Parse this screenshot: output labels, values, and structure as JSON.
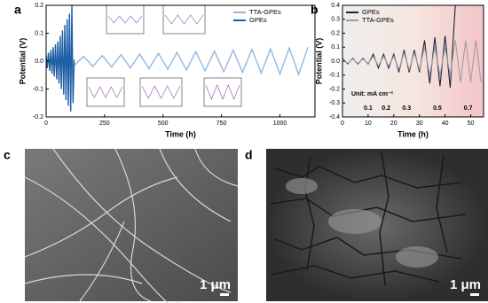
{
  "chart_data": [
    {
      "type": "line",
      "label": "a",
      "xlabel": "Time (h)",
      "ylabel": "Potential (V)",
      "xlim": [
        0,
        1150
      ],
      "xticks": [
        0,
        250,
        500,
        750,
        1000
      ],
      "ylim": [
        -0.2,
        0.2
      ],
      "yticks": [
        -0.2,
        -0.1,
        {
          "value": 0,
          "label": "0.0"
        },
        0.1,
        0.2
      ],
      "legend": "upper right",
      "series": [
        {
          "name": "TTA-GPEs",
          "color": "#8fb8e0",
          "x": [
            0,
            40,
            80,
            120,
            160,
            200,
            240,
            280,
            320,
            360,
            400,
            440,
            480,
            520,
            560,
            600,
            640,
            680,
            720,
            760,
            800,
            840,
            880,
            920,
            960,
            1000,
            1040,
            1080,
            1120
          ],
          "values": [
            0.012,
            -0.013,
            0.015,
            -0.016,
            0.017,
            -0.019,
            0.02,
            -0.021,
            0.023,
            -0.024,
            0.025,
            -0.027,
            0.028,
            -0.029,
            0.031,
            -0.032,
            0.034,
            -0.035,
            0.036,
            -0.038,
            0.039,
            -0.04,
            0.042,
            -0.043,
            0.044,
            -0.046,
            0.047,
            -0.048,
            0.05
          ]
        },
        {
          "name": "GPEs",
          "color": "#1f5fa6",
          "x": [
            0,
            5,
            10,
            15,
            20,
            25,
            30,
            35,
            40,
            45,
            50,
            55,
            60,
            65,
            70,
            75,
            80,
            85,
            90,
            95,
            100,
            105,
            110,
            115,
            120
          ],
          "values": [
            0.02,
            -0.025,
            0.03,
            -0.035,
            0.04,
            -0.045,
            0.05,
            -0.055,
            0.06,
            -0.065,
            0.07,
            -0.08,
            0.09,
            -0.1,
            0.11,
            -0.12,
            0.13,
            -0.14,
            0.15,
            -0.16,
            0.17,
            -0.18,
            0.2,
            -0.15,
            0.005
          ]
        }
      ]
    },
    {
      "type": "line",
      "label": "b",
      "xlabel": "Time (h)",
      "ylabel": "Potential (V)",
      "xlim": [
        0,
        55
      ],
      "xticks": [
        0,
        10,
        20,
        30,
        40,
        50
      ],
      "ylim": [
        -0.4,
        0.4
      ],
      "yticks": [
        -0.4,
        -0.3,
        -0.2,
        -0.1,
        {
          "value": 0,
          "label": "0.0"
        },
        0.1,
        0.2,
        0.3,
        0.4
      ],
      "legend": "upper left",
      "annotation": "Unit: mA cm⁻²",
      "rate_labels": [
        "0.1",
        "0.2",
        "0.3",
        "0.5",
        "0.7"
      ],
      "series": [
        {
          "name": "GPEs",
          "color": "#1a2440",
          "x": [
            0,
            2,
            4,
            6,
            8,
            10,
            12,
            14,
            16,
            18,
            20,
            22,
            24,
            26,
            28,
            30,
            32,
            34,
            36,
            38,
            40,
            42,
            44,
            46,
            48,
            50,
            52,
            54
          ],
          "values": [
            0.02,
            -0.02,
            0.02,
            -0.02,
            0.02,
            -0.02,
            0.05,
            -0.05,
            0.05,
            -0.05,
            0.05,
            -0.08,
            0.08,
            -0.08,
            0.08,
            -0.08,
            0.15,
            -0.16,
            0.17,
            -0.18,
            0.18,
            -0.19,
            0.4,
            null,
            null,
            null,
            null,
            null
          ]
        },
        {
          "name": "TTA-GPEs",
          "color": "#a0a0a0",
          "x": [
            0,
            2,
            4,
            6,
            8,
            10,
            12,
            14,
            16,
            18,
            20,
            22,
            24,
            26,
            28,
            30,
            32,
            34,
            36,
            38,
            40,
            42,
            44,
            46,
            48,
            50,
            52,
            54
          ],
          "values": [
            0.015,
            -0.015,
            0.015,
            -0.015,
            0.015,
            -0.015,
            0.035,
            -0.035,
            0.035,
            -0.035,
            0.035,
            -0.06,
            0.06,
            -0.06,
            0.06,
            -0.06,
            0.1,
            -0.1,
            0.1,
            -0.1,
            0.1,
            -0.1,
            0.15,
            -0.15,
            0.15,
            -0.15,
            0.15,
            -0.15
          ]
        }
      ]
    }
  ],
  "images": [
    {
      "label": "c",
      "scale": "1 μm"
    },
    {
      "label": "d",
      "scale": "1 μm"
    }
  ]
}
